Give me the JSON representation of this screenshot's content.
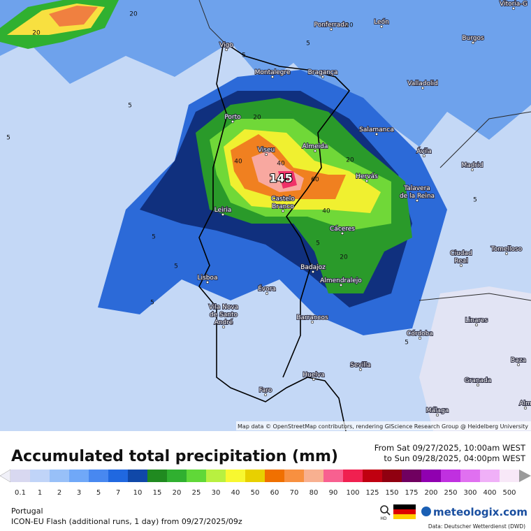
{
  "map": {
    "cities": [
      "Vitoria-G",
      "Ponferrada",
      "León",
      "Burgos",
      "Vigo",
      "Montalegre",
      "Bragança",
      "Valladolid",
      "Porto",
      "Salamanca",
      "Viseu",
      "Almeida",
      "Ávila",
      "Madrid",
      "Hervás",
      [
        "Talavera",
        "de la Reina"
      ],
      [
        "Castelo",
        "Branco"
      ],
      "Leiria",
      "Cáceres",
      [
        "Ciudad",
        "Real"
      ],
      "Tomelloso",
      "Badajoz",
      "Almendralejo",
      "Lisboa",
      "Évora",
      [
        "Vila Nova",
        "de Santo",
        "André"
      ],
      "Barrancos",
      "Linares",
      "Córdoba",
      "Sevilla",
      "Baza",
      "Granada",
      "Huelva",
      "Faro",
      "Málaga",
      "Alm"
    ],
    "contour_labels": [
      "20",
      "20",
      "5",
      "20",
      "5",
      "5",
      "5",
      "20",
      "40",
      "40",
      "145",
      "60",
      "20",
      "40",
      "5",
      "5",
      "5",
      "20",
      "5",
      "5",
      "5"
    ],
    "attribution": "Map data © OpenStreetMap contributors, rendering GIScience Research Group @ Heidelberg University"
  },
  "header": {
    "title": "Accumulated total precipitation (mm)",
    "from": "From Sat 09/27/2025, 10:00am WEST",
    "to": "to Sun 09/28/2025, 04:00pm WEST"
  },
  "legend": {
    "values": [
      0.1,
      1,
      2,
      3,
      5,
      7,
      10,
      15,
      20,
      25,
      30,
      40,
      50,
      60,
      70,
      80,
      90,
      100,
      125,
      150,
      175,
      200,
      250,
      300,
      400,
      500
    ],
    "colors": [
      "#d8d8f0",
      "#c0d4f8",
      "#98c0f8",
      "#70a8f8",
      "#4888f0",
      "#2068e0",
      "#1048a8",
      "#208a20",
      "#30b030",
      "#60d838",
      "#b8f040",
      "#f8f830",
      "#e8d000",
      "#f07000",
      "#f89040",
      "#f8b090",
      "#f86090",
      "#f02050",
      "#c00010",
      "#900010",
      "#700060",
      "#9000b0",
      "#c030e0",
      "#e070f0",
      "#f0b0f8",
      "#f8e8f8"
    ]
  },
  "footer": {
    "region": "Portugal",
    "model": "ICON-EU Flash (additional runs, 1 day) from 09/27/2025/09z",
    "hd": "HD",
    "brand": "meteologix.com",
    "source": "Data: Deutscher Wetterdienst (DWD)"
  }
}
